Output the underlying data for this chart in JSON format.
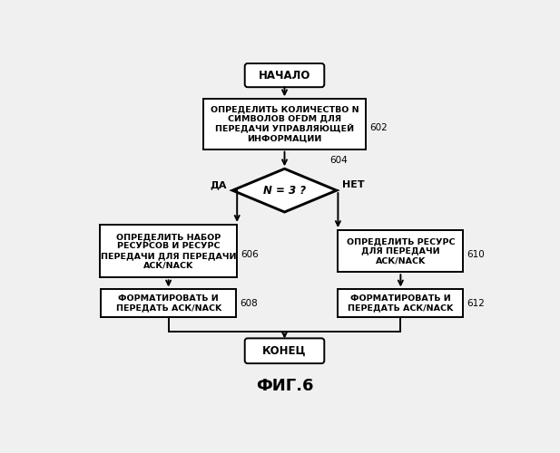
{
  "bg_color": "#f0f0f0",
  "title_text": "ФИГ.6",
  "start_text": "НАЧАЛО",
  "end_text": "КОНЕЦ",
  "box1_text": "ОПРЕДЕЛИТЬ КОЛИЧЕСТВО N\nСИМВОЛОВ OFDM ДЛЯ\nПЕРЕДАЧИ УПРАВЛЯЮЩЕЙ\nИНФОРМАЦИИ",
  "box1_label": "602",
  "diamond_text": "N = 3 ?",
  "diamond_label": "604",
  "yes_text": "ДА",
  "no_text": "НЕТ",
  "box2_text": "ОПРЕДЕЛИТЬ НАБОР\nРЕСУРСОВ И РЕСУРС\nПЕРЕДАЧИ ДЛЯ ПЕРЕДАЧИ\nАСК/NACK",
  "box2_label": "606",
  "box3_text": "ФОРМАТИРОВАТЬ И\nПЕРЕДАТЬ АСК/NACK",
  "box3_label": "608",
  "box4_text": "ОПРЕДЕЛИТЬ РЕСУРС\nДЛЯ ПЕРЕДАЧИ\nАСК/NACK",
  "box4_label": "610",
  "box5_text": "ФОРМАТИРОВАТЬ И\nПЕРЕДАТЬ АСК/NACK",
  "box5_label": "612",
  "line_color": "#000000",
  "text_color": "#000000",
  "font_size_box": 6.8,
  "font_size_terminal": 8.5,
  "font_size_label": 7.5,
  "font_size_diamond": 8.5,
  "font_size_title": 13,
  "font_size_yesno": 8.0
}
